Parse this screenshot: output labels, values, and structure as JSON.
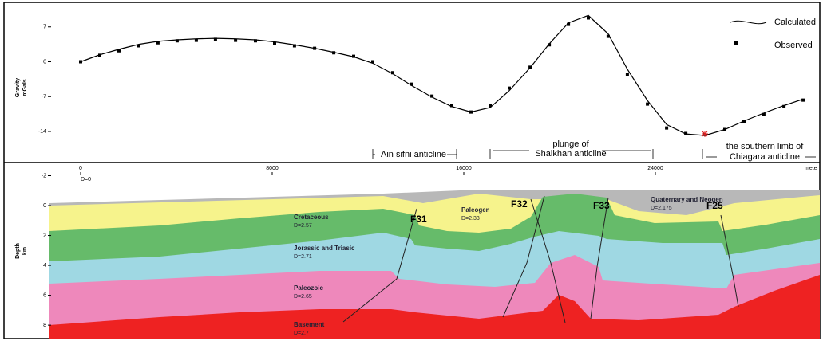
{
  "chart_data": [
    {
      "type": "line",
      "ylabel": [
        "Gravity",
        "mGals"
      ],
      "x_label": "mete",
      "x_origin_label": "D=0",
      "x": [
        0,
        800,
        1600,
        2430,
        3230,
        4030,
        4830,
        5630,
        6470,
        7300,
        8100,
        8930,
        9770,
        10570,
        11400,
        12200,
        13030,
        13830,
        14670,
        15500,
        16300,
        17100,
        17900,
        18770,
        19570,
        20370,
        21200,
        22030,
        22830,
        23670,
        24470,
        25270,
        26070,
        26900,
        27700,
        28530,
        29370,
        30170
      ],
      "series": [
        {
          "name": "Calculated",
          "color": "#000000",
          "values": [
            0,
            1.4,
            2.5,
            3.5,
            4.1,
            4.4,
            4.6,
            4.7,
            4.6,
            4.4,
            4.0,
            3.4,
            2.7,
            1.9,
            1.0,
            -0.3,
            -2.4,
            -4.8,
            -7.1,
            -9.0,
            -10.1,
            -9.2,
            -5.8,
            -1.2,
            3.6,
            7.8,
            9.3,
            5.6,
            -1.5,
            -7.8,
            -12.6,
            -14.5,
            -14.8,
            -13.6,
            -11.9,
            -10.3,
            -8.8,
            -7.5
          ]
        },
        {
          "name": "Observed",
          "color": "#000000",
          "values": [
            0,
            1.3,
            2.2,
            3.2,
            3.8,
            4.2,
            4.3,
            4.5,
            4.3,
            4.2,
            3.7,
            3.2,
            2.7,
            1.8,
            1.1,
            0,
            -2.2,
            -4.5,
            -6.9,
            -8.8,
            -10.1,
            -8.8,
            -5.3,
            -1.1,
            3.4,
            7.5,
            8.8,
            5.1,
            -2.6,
            -8.5,
            -13.3,
            -14.4,
            -14.6,
            -13.6,
            -12.0,
            -10.6,
            -9.0,
            -7.7
          ]
        }
      ],
      "xlim": [
        -1300,
        30800
      ],
      "xticks": [
        0,
        8000,
        16000,
        24000
      ],
      "ylim": [
        -19.6,
        10.8
      ],
      "yticks": [
        7,
        0,
        -7,
        -14
      ],
      "annotations": [
        "Ain sifni  anticline",
        "plunge of",
        "Shaikhan anticline",
        "the southern limb of",
        "Chiagara anticline"
      ]
    },
    {
      "type": "section",
      "ylabel": [
        "Depth",
        "km"
      ],
      "ylim": [
        -2.56,
        8.9
      ],
      "yticks": [
        -2,
        0,
        2,
        4,
        6,
        8
      ],
      "layers": [
        {
          "name": "Quaternary and Neogen",
          "density": "D=2.175"
        },
        {
          "name": "Paleogen",
          "density": "D=2.33"
        },
        {
          "name": "Cretaceous",
          "density": "D=2.57"
        },
        {
          "name": "Jorassic and Triasic",
          "density": "D=2.71"
        },
        {
          "name": "Paleozoic",
          "density": "D=2.65"
        },
        {
          "name": "Basement",
          "density": "D=2.7"
        }
      ],
      "faults": [
        "F31",
        "F32",
        "F33",
        "F25"
      ]
    }
  ]
}
